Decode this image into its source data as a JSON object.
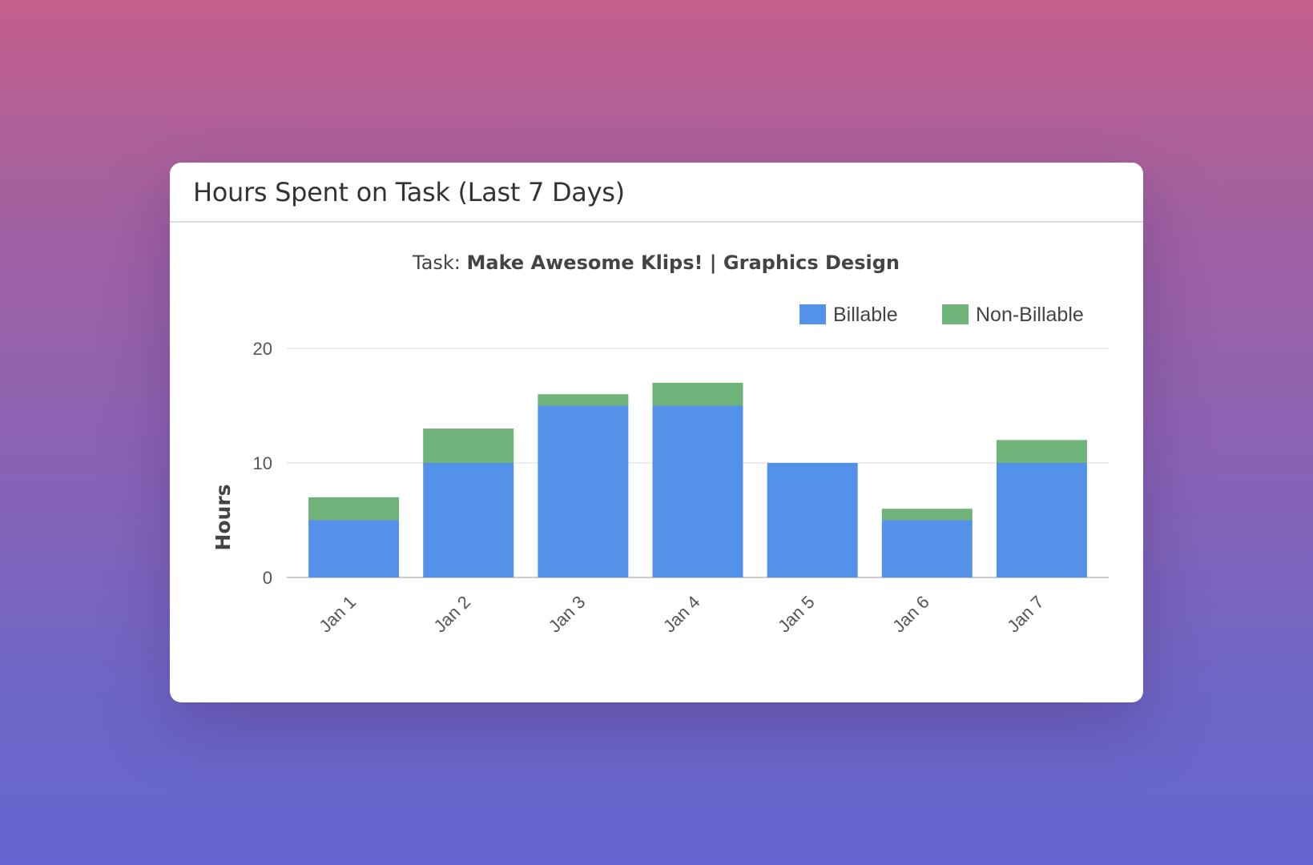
{
  "card": {
    "title": "Hours Spent on Task (Last 7 Days)"
  },
  "chart_data": {
    "type": "bar",
    "stacked": true,
    "subtitle_prefix": "Task: ",
    "subtitle_bold": "Make Awesome Klips! | Graphics Design",
    "ylabel": "Hours",
    "xlabel": "",
    "ylim": [
      0,
      20
    ],
    "yticks": [
      0,
      10,
      20
    ],
    "categories": [
      "Jan 1",
      "Jan 2",
      "Jan 3",
      "Jan 4",
      "Jan 5",
      "Jan 6",
      "Jan 7"
    ],
    "series": [
      {
        "name": "Billable",
        "color": "#5491e8",
        "values": [
          5,
          10,
          15,
          15,
          10,
          5,
          10
        ]
      },
      {
        "name": "Non-Billable",
        "color": "#6fb27a",
        "values": [
          2,
          3,
          1,
          2,
          0,
          1,
          2
        ]
      }
    ],
    "legend_position": "top-right",
    "grid": true
  }
}
